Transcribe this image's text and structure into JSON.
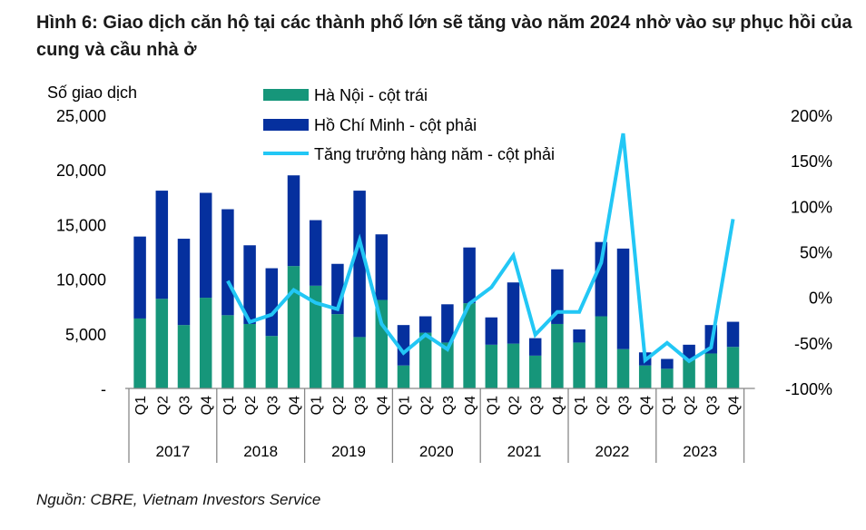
{
  "title": "Hình 6: Giao dịch căn hộ tại các thành phố lớn sẽ tăng vào năm 2024 nhờ vào sự phục hồi của cung và cầu nhà ở",
  "source": "Nguồn: CBRE, Vietnam Investors Service",
  "colors": {
    "hanoi": "#16967a",
    "hcm": "#05309e",
    "growth": "#22c7f5"
  },
  "chart_data": {
    "type": "bar",
    "stacked": true,
    "ylabel": "Số giao dịch",
    "ylim": [
      0,
      25000
    ],
    "yticks": [
      "-",
      "5,000",
      "10,000",
      "15,000",
      "20,000",
      "25,000"
    ],
    "y2lim": [
      -100,
      200
    ],
    "y2ticks": [
      "-100%",
      "-50%",
      "0%",
      "50%",
      "100%",
      "150%",
      "200%"
    ],
    "legend_position": "top-center",
    "years": [
      "2017",
      "2018",
      "2019",
      "2020",
      "2021",
      "2022",
      "2023"
    ],
    "quarters": [
      "Q1",
      "Q2",
      "Q3",
      "Q4"
    ],
    "series": [
      {
        "name": "Hà Nội - cột trái",
        "type": "bar",
        "axis": "left",
        "values": [
          6400,
          8200,
          5800,
          8300,
          6700,
          5900,
          4800,
          11200,
          9400,
          6800,
          4700,
          8100,
          2100,
          5100,
          4200,
          7800,
          4000,
          4100,
          3000,
          5900,
          4200,
          6600,
          3600,
          2100,
          1800,
          2600,
          3200,
          3800
        ]
      },
      {
        "name": "Hồ Chí Minh - cột phải",
        "type": "bar",
        "axis": "left",
        "values": [
          7500,
          9900,
          7900,
          9600,
          9700,
          7200,
          6200,
          8300,
          6000,
          4600,
          13400,
          6000,
          3700,
          1500,
          3500,
          5100,
          2500,
          5600,
          1600,
          5000,
          1200,
          6800,
          9200,
          1200,
          900,
          1400,
          2600,
          2300
        ]
      },
      {
        "name": "Tăng trưởng hàng năm - cột phải",
        "type": "line",
        "axis": "right",
        "unit": "%",
        "values": [
          null,
          null,
          null,
          null,
          18,
          -27,
          -19,
          8,
          -6,
          -13,
          63,
          -29,
          -61,
          -41,
          -57,
          -7,
          11,
          46,
          -41,
          -16,
          -16,
          38,
          180,
          -69,
          -50,
          -70,
          -55,
          86
        ]
      }
    ]
  }
}
